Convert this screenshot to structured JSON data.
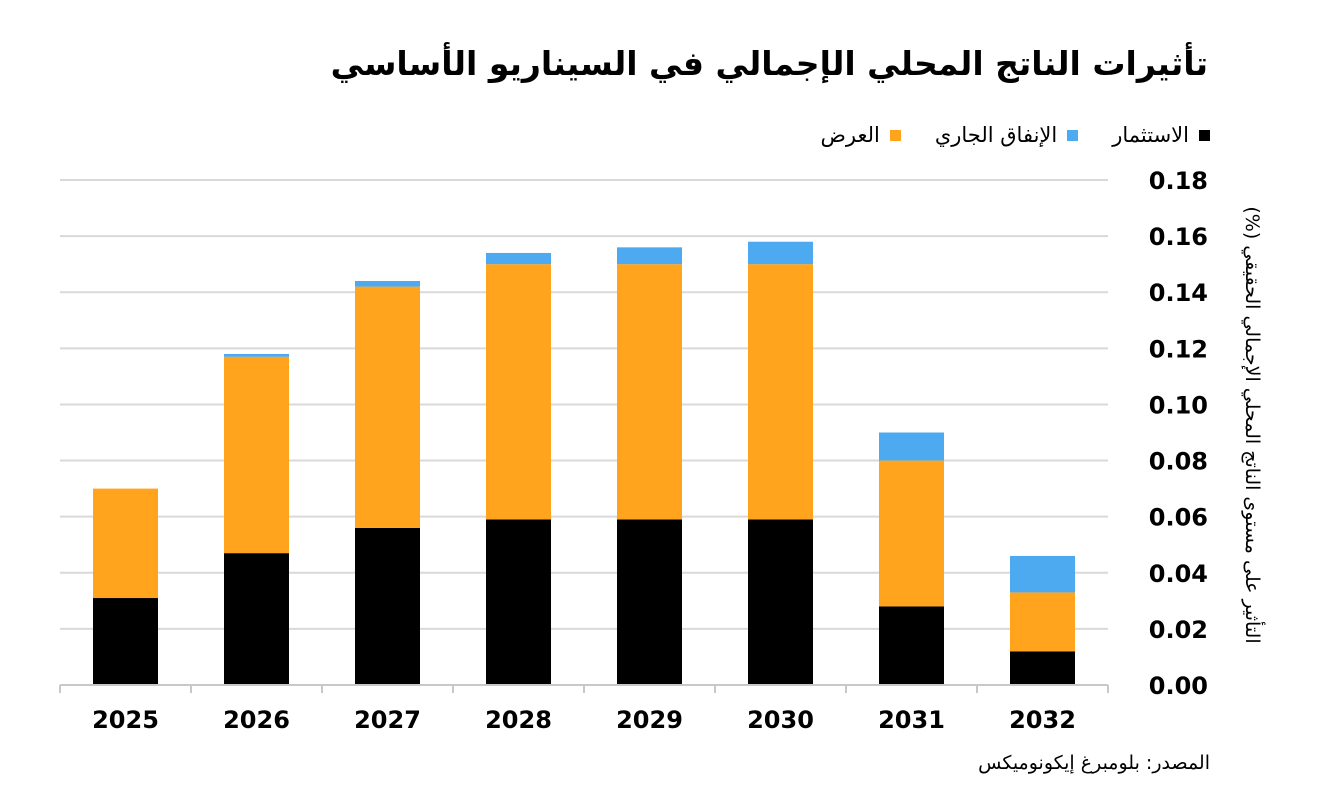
{
  "chart_data": {
    "type": "bar",
    "stacked": true,
    "title": "تأثيرات الناتج المحلي الإجمالي في السيناريو الأساسي",
    "xlabel": "",
    "ylabel": "التأثير على مستوى الناتج المحلي الإجمالي الحقيقي (%)",
    "ylim": [
      0,
      0.18
    ],
    "yticks": [
      "0.00",
      "0.02",
      "0.04",
      "0.06",
      "0.08",
      "0.10",
      "0.12",
      "0.14",
      "0.16",
      "0.18"
    ],
    "ytick_values": [
      0,
      0.02,
      0.04,
      0.06,
      0.08,
      0.1,
      0.12,
      0.14,
      0.16,
      0.18
    ],
    "y_axis_position": "right",
    "grid": true,
    "legend_position": "top-right",
    "categories": [
      "2025",
      "2026",
      "2027",
      "2028",
      "2029",
      "2030",
      "2031",
      "2032"
    ],
    "series": [
      {
        "name": "الاستثمار",
        "color": "#000000",
        "values": [
          0.031,
          0.047,
          0.056,
          0.059,
          0.059,
          0.059,
          0.028,
          0.012
        ]
      },
      {
        "name": "العرض",
        "color": "#FFA41C",
        "values": [
          0.039,
          0.07,
          0.086,
          0.091,
          0.091,
          0.091,
          0.052,
          0.021
        ]
      },
      {
        "name": "الإنفاق الجاري",
        "color": "#4DA9F0",
        "values": [
          0.0,
          0.001,
          0.002,
          0.004,
          0.006,
          0.008,
          0.01,
          0.013
        ]
      }
    ],
    "legend_order": [
      0,
      2,
      1
    ],
    "source": "المصدر: بلومبرغ إيكونوميكس"
  },
  "colors": {
    "grid": "#d9d9d9",
    "axis": "#c8c8c8",
    "text": "#000000"
  }
}
